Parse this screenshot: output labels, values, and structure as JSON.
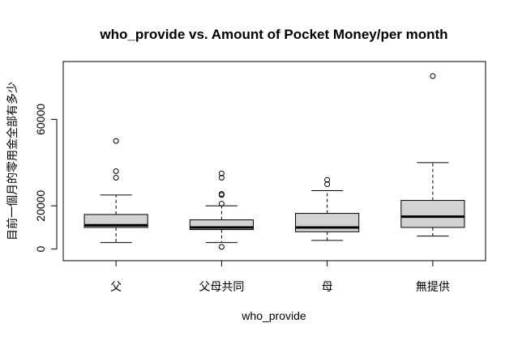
{
  "chart_data": {
    "type": "boxplot",
    "title": "who_provide vs. Amount of Pocket Money/per month",
    "xlabel": "who_provide",
    "ylabel": "目前一個月的零用金全部有多少",
    "ylim": [
      -2000,
      83000
    ],
    "yticks": [
      0,
      20000,
      60000
    ],
    "categories": [
      "父",
      "父母共同",
      "母",
      "無提供"
    ],
    "boxes": [
      {
        "category": "父",
        "whisker_low": 3000,
        "q1": 10000,
        "median": 11000,
        "q3": 16000,
        "whisker_high": 25000,
        "outliers": [
          33000,
          36000,
          50000
        ]
      },
      {
        "category": "父母共同",
        "whisker_low": 3000,
        "q1": 9000,
        "median": 10000,
        "q3": 13500,
        "whisker_high": 20000,
        "outliers": [
          1000,
          21000,
          25000,
          25500,
          33000,
          35000
        ]
      },
      {
        "category": "母",
        "whisker_low": 4000,
        "q1": 8000,
        "median": 10000,
        "q3": 16500,
        "whisker_high": 27000,
        "outliers": [
          30000,
          32000
        ]
      },
      {
        "category": "無提供",
        "whisker_low": 6000,
        "q1": 10000,
        "median": 15000,
        "q3": 22500,
        "whisker_high": 40000,
        "outliers": [
          80000
        ]
      }
    ],
    "grid": false,
    "box_fill": "#d3d3d3"
  }
}
